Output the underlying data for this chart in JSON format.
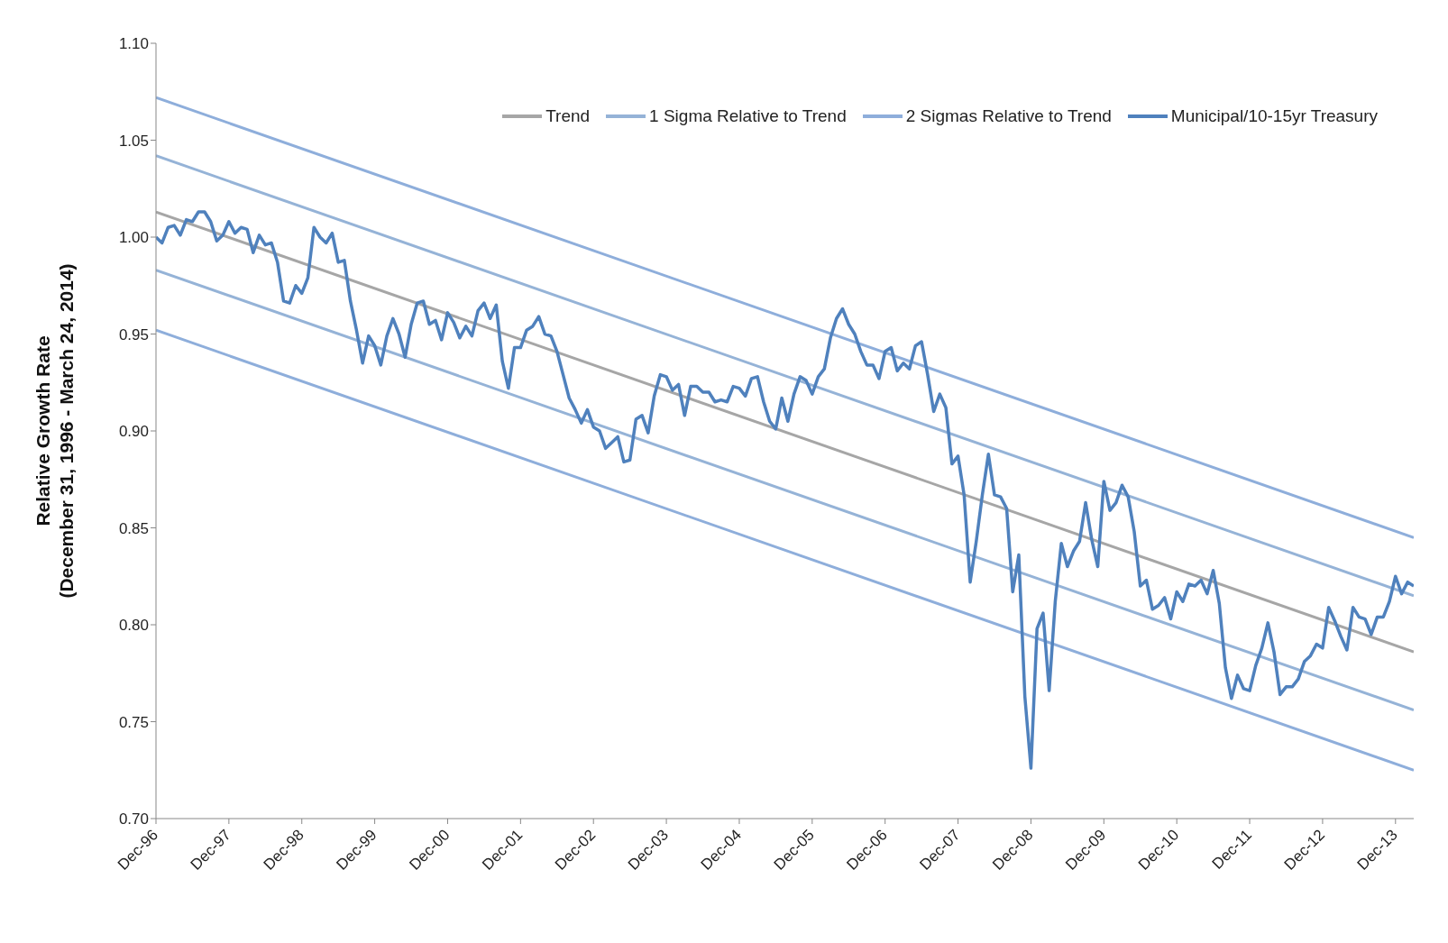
{
  "chart_data": {
    "type": "line",
    "ylabel": "Relative Growth Rate\n(December 31, 1996 - March 24, 2014)",
    "x": [
      "1996-12",
      "1997-01",
      "1997-02",
      "1997-03",
      "1997-04",
      "1997-05",
      "1997-06",
      "1997-07",
      "1997-08",
      "1997-09",
      "1997-10",
      "1997-11",
      "1997-12",
      "1998-01",
      "1998-02",
      "1998-03",
      "1998-04",
      "1998-05",
      "1998-06",
      "1998-07",
      "1998-08",
      "1998-09",
      "1998-10",
      "1998-11",
      "1998-12",
      "1999-01",
      "1999-02",
      "1999-03",
      "1999-04",
      "1999-05",
      "1999-06",
      "1999-07",
      "1999-08",
      "1999-09",
      "1999-10",
      "1999-11",
      "1999-12",
      "2000-01",
      "2000-02",
      "2000-03",
      "2000-04",
      "2000-05",
      "2000-06",
      "2000-07",
      "2000-08",
      "2000-09",
      "2000-10",
      "2000-11",
      "2000-12",
      "2001-01",
      "2001-02",
      "2001-03",
      "2001-04",
      "2001-05",
      "2001-06",
      "2001-07",
      "2001-08",
      "2001-09",
      "2001-10",
      "2001-11",
      "2001-12",
      "2002-01",
      "2002-02",
      "2002-03",
      "2002-04",
      "2002-05",
      "2002-06",
      "2002-07",
      "2002-08",
      "2002-09",
      "2002-10",
      "2002-11",
      "2002-12",
      "2003-01",
      "2003-02",
      "2003-03",
      "2003-04",
      "2003-05",
      "2003-06",
      "2003-07",
      "2003-08",
      "2003-09",
      "2003-10",
      "2003-11",
      "2003-12",
      "2004-01",
      "2004-02",
      "2004-03",
      "2004-04",
      "2004-05",
      "2004-06",
      "2004-07",
      "2004-08",
      "2004-09",
      "2004-10",
      "2004-11",
      "2004-12",
      "2005-01",
      "2005-02",
      "2005-03",
      "2005-04",
      "2005-05",
      "2005-06",
      "2005-07",
      "2005-08",
      "2005-09",
      "2005-10",
      "2005-11",
      "2005-12",
      "2006-01",
      "2006-02",
      "2006-03",
      "2006-04",
      "2006-05",
      "2006-06",
      "2006-07",
      "2006-08",
      "2006-09",
      "2006-10",
      "2006-11",
      "2006-12",
      "2007-01",
      "2007-02",
      "2007-03",
      "2007-04",
      "2007-05",
      "2007-06",
      "2007-07",
      "2007-08",
      "2007-09",
      "2007-10",
      "2007-11",
      "2007-12",
      "2008-01",
      "2008-02",
      "2008-03",
      "2008-04",
      "2008-05",
      "2008-06",
      "2008-07",
      "2008-08",
      "2008-09",
      "2008-10",
      "2008-11",
      "2008-12",
      "2009-01",
      "2009-02",
      "2009-03",
      "2009-04",
      "2009-05",
      "2009-06",
      "2009-07",
      "2009-08",
      "2009-09",
      "2009-10",
      "2009-11",
      "2009-12",
      "2010-01",
      "2010-02",
      "2010-03",
      "2010-04",
      "2010-05",
      "2010-06",
      "2010-07",
      "2010-08",
      "2010-09",
      "2010-10",
      "2010-11",
      "2010-12",
      "2011-01",
      "2011-02",
      "2011-03",
      "2011-04",
      "2011-05",
      "2011-06",
      "2011-07",
      "2011-08",
      "2011-09",
      "2011-10",
      "2011-11",
      "2011-12",
      "2012-01",
      "2012-02",
      "2012-03",
      "2012-04",
      "2012-05",
      "2012-06",
      "2012-07",
      "2012-08",
      "2012-09",
      "2012-10",
      "2012-11",
      "2012-12",
      "2013-01",
      "2013-02",
      "2013-03",
      "2013-04",
      "2013-05",
      "2013-06",
      "2013-07",
      "2013-08",
      "2013-09",
      "2013-10",
      "2013-11",
      "2013-12",
      "2014-01",
      "2014-02",
      "2014-03"
    ],
    "series": [
      {
        "name": "Trend",
        "color": "#a6a6a6",
        "x": [
          "1996-12",
          "2014-03"
        ],
        "values": [
          1.013,
          0.786
        ]
      },
      {
        "name": "1 Sigma Relative to Trend",
        "color": "#95b3d7",
        "x": [
          "1996-12",
          "2014-03"
        ],
        "values": [
          1.042,
          0.815
        ]
      },
      {
        "color": "#95b3d7",
        "x": [
          "1996-12",
          "2014-03"
        ],
        "values": [
          0.983,
          0.756
        ]
      },
      {
        "name": "2 Sigmas Relative to Trend",
        "color": "#8eaedb",
        "x": [
          "1996-12",
          "2014-03"
        ],
        "values": [
          1.072,
          0.845
        ]
      },
      {
        "color": "#8eaedb",
        "x": [
          "1996-12",
          "2014-03"
        ],
        "values": [
          0.952,
          0.725
        ]
      },
      {
        "name": "Municipal/10-15yr Treasury",
        "color": "#4f81bd",
        "values": [
          1.0,
          0.997,
          1.005,
          1.006,
          1.001,
          1.009,
          1.008,
          1.013,
          1.013,
          1.008,
          0.998,
          1.001,
          1.008,
          1.002,
          1.005,
          1.004,
          0.992,
          1.001,
          0.996,
          0.997,
          0.987,
          0.967,
          0.966,
          0.975,
          0.971,
          0.979,
          1.005,
          1.0,
          0.997,
          1.002,
          0.987,
          0.988,
          0.967,
          0.952,
          0.935,
          0.949,
          0.944,
          0.934,
          0.949,
          0.958,
          0.95,
          0.938,
          0.955,
          0.966,
          0.967,
          0.955,
          0.957,
          0.947,
          0.961,
          0.956,
          0.948,
          0.954,
          0.949,
          0.962,
          0.966,
          0.958,
          0.965,
          0.936,
          0.922,
          0.943,
          0.943,
          0.952,
          0.954,
          0.959,
          0.95,
          0.949,
          0.941,
          0.929,
          0.917,
          0.911,
          0.904,
          0.911,
          0.902,
          0.9,
          0.891,
          0.894,
          0.897,
          0.884,
          0.885,
          0.906,
          0.908,
          0.899,
          0.918,
          0.929,
          0.928,
          0.921,
          0.924,
          0.908,
          0.923,
          0.923,
          0.92,
          0.92,
          0.915,
          0.916,
          0.915,
          0.923,
          0.922,
          0.918,
          0.927,
          0.928,
          0.915,
          0.905,
          0.901,
          0.917,
          0.905,
          0.919,
          0.928,
          0.926,
          0.919,
          0.928,
          0.932,
          0.948,
          0.958,
          0.963,
          0.955,
          0.95,
          0.941,
          0.934,
          0.934,
          0.927,
          0.941,
          0.943,
          0.931,
          0.935,
          0.932,
          0.944,
          0.946,
          0.929,
          0.91,
          0.919,
          0.912,
          0.883,
          0.887,
          0.867,
          0.822,
          0.843,
          0.867,
          0.888,
          0.867,
          0.866,
          0.86,
          0.817,
          0.836,
          0.763,
          0.726,
          0.798,
          0.806,
          0.766,
          0.812,
          0.842,
          0.83,
          0.838,
          0.843,
          0.863,
          0.844,
          0.83,
          0.874,
          0.859,
          0.863,
          0.872,
          0.866,
          0.848,
          0.82,
          0.823,
          0.808,
          0.81,
          0.814,
          0.803,
          0.817,
          0.812,
          0.821,
          0.82,
          0.823,
          0.816,
          0.828,
          0.811,
          0.778,
          0.762,
          0.774,
          0.767,
          0.766,
          0.779,
          0.788,
          0.801,
          0.786,
          0.764,
          0.768,
          0.768,
          0.772,
          0.781,
          0.784,
          0.79,
          0.788,
          0.809,
          0.802,
          0.794,
          0.787,
          0.809,
          0.804,
          0.803,
          0.795,
          0.804,
          0.804,
          0.812,
          0.825,
          0.816,
          0.822,
          0.82
        ]
      }
    ],
    "xlim": [
      "1996-12",
      "2014-03"
    ],
    "xticks": [
      {
        "value": "1996-12",
        "label": "Dec-96"
      },
      {
        "value": "1997-12",
        "label": "Dec-97"
      },
      {
        "value": "1998-12",
        "label": "Dec-98"
      },
      {
        "value": "1999-12",
        "label": "Dec-99"
      },
      {
        "value": "2000-12",
        "label": "Dec-00"
      },
      {
        "value": "2001-12",
        "label": "Dec-01"
      },
      {
        "value": "2002-12",
        "label": "Dec-02"
      },
      {
        "value": "2003-12",
        "label": "Dec-03"
      },
      {
        "value": "2004-12",
        "label": "Dec-04"
      },
      {
        "value": "2005-12",
        "label": "Dec-05"
      },
      {
        "value": "2006-12",
        "label": "Dec-06"
      },
      {
        "value": "2007-12",
        "label": "Dec-07"
      },
      {
        "value": "2008-12",
        "label": "Dec-08"
      },
      {
        "value": "2009-12",
        "label": "Dec-09"
      },
      {
        "value": "2010-12",
        "label": "Dec-10"
      },
      {
        "value": "2011-12",
        "label": "Dec-11"
      },
      {
        "value": "2012-12",
        "label": "Dec-12"
      },
      {
        "value": "2013-12",
        "label": "Dec-13"
      }
    ],
    "ylim": [
      0.7,
      1.1
    ],
    "yticks": [
      {
        "value": 0.7,
        "label": "0.70"
      },
      {
        "value": 0.75,
        "label": "0.75"
      },
      {
        "value": 0.8,
        "label": "0.80"
      },
      {
        "value": 0.85,
        "label": "0.85"
      },
      {
        "value": 0.9,
        "label": "0.90"
      },
      {
        "value": 0.95,
        "label": "0.95"
      },
      {
        "value": 1.0,
        "label": "1.00"
      },
      {
        "value": 1.05,
        "label": "1.05"
      },
      {
        "value": 1.1,
        "label": "1.10"
      }
    ],
    "grid": false,
    "legend": "top right",
    "marker": "none",
    "line_style": "solid"
  }
}
